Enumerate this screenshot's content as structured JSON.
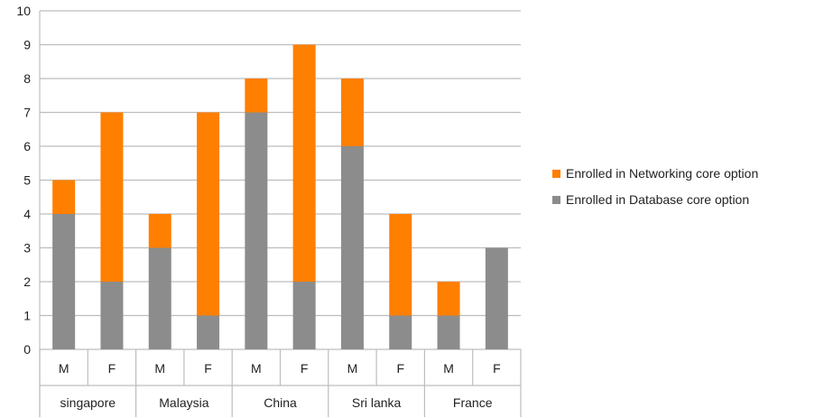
{
  "chart_data": {
    "type": "bar",
    "stacked": true,
    "groups": [
      "singapore",
      "Malaysia",
      "China",
      "Sri lanka",
      "France"
    ],
    "subcategories": [
      "M",
      "F"
    ],
    "categories": [
      "singapore M",
      "singapore F",
      "Malaysia M",
      "Malaysia F",
      "China M",
      "China F",
      "Sri lanka M",
      "Sri lanka F",
      "France M",
      "France F"
    ],
    "series": [
      {
        "name": "Enrolled in Database core option",
        "color": "#8c8c8c",
        "values": [
          4,
          2,
          3,
          1,
          7,
          2,
          6,
          1,
          1,
          3
        ]
      },
      {
        "name": "Enrolled in Networking core option",
        "color": "#ff7f00",
        "values": [
          1,
          5,
          1,
          6,
          1,
          7,
          2,
          3,
          1,
          0
        ]
      }
    ],
    "ylim": [
      0,
      10
    ],
    "yticks": [
      0,
      1,
      2,
      3,
      4,
      5,
      6,
      7,
      8,
      9,
      10
    ],
    "grid": true,
    "legend_position": "right"
  }
}
